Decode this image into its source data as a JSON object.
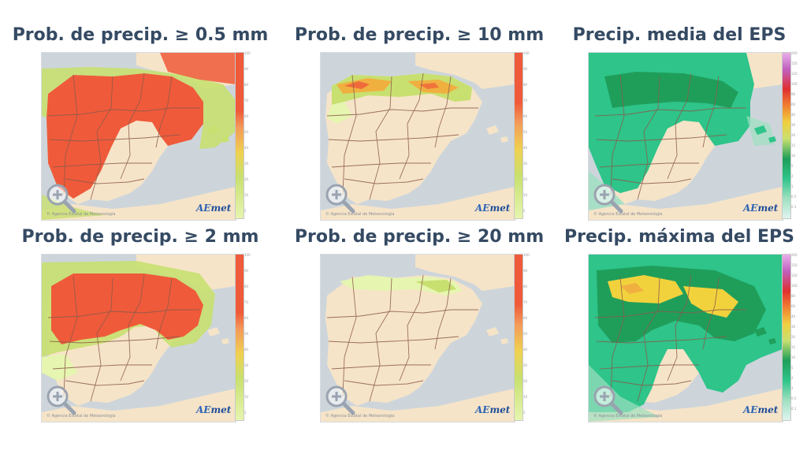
{
  "panels": [
    {
      "title": "Prob. de precip.  ≥ 0.5 mm",
      "legend": [
        "100",
        "90",
        "80",
        "70",
        "60",
        "50",
        "40",
        "30",
        "20",
        "10",
        "5"
      ]
    },
    {
      "title": "Prob. de precip.  ≥ 10 mm",
      "legend": [
        "100",
        "90",
        "80",
        "70",
        "60",
        "50",
        "40",
        "30",
        "20",
        "10",
        "5"
      ]
    },
    {
      "title": "Precip. media del EPS",
      "legend": [
        "200",
        "150",
        "120",
        "100",
        "80",
        "60",
        "40",
        "30",
        "20",
        "15",
        "10",
        "5",
        "2",
        "1",
        "0.5",
        "0.1"
      ]
    },
    {
      "title": "Prob. de precip.  ≥ 2 mm",
      "legend": [
        "100",
        "90",
        "80",
        "70",
        "60",
        "50",
        "40",
        "30",
        "20",
        "10",
        "5"
      ]
    },
    {
      "title": "Prob. de precip.  ≥ 20 mm",
      "legend": [
        "100",
        "90",
        "80",
        "70",
        "60",
        "50",
        "40",
        "30",
        "20",
        "10",
        "5"
      ]
    },
    {
      "title": "Precip. máxima del EPS",
      "legend": [
        "200",
        "150",
        "120",
        "100",
        "80",
        "60",
        "40",
        "30",
        "20",
        "15",
        "10",
        "5",
        "2",
        "1",
        "0.5",
        "0.1"
      ]
    }
  ],
  "credit": "© Agencia Estatal de Meteorología",
  "logo": {
    "a": "AE",
    "b": "met"
  },
  "icons": {
    "zoom": "zoom-in-magnifier-icon"
  },
  "colors": {
    "title": "#354a63",
    "land": "#f6e4c8",
    "sea": "#cdd5db",
    "prob_high": "#ef5a3a",
    "prob_mid": "#f0b040",
    "prob_low": "#c8e070",
    "prob_min": "#e6f5b0",
    "eps_low": "#2ec48a",
    "eps_mid": "#1f9e5a",
    "eps_high": "#f2d23c"
  }
}
